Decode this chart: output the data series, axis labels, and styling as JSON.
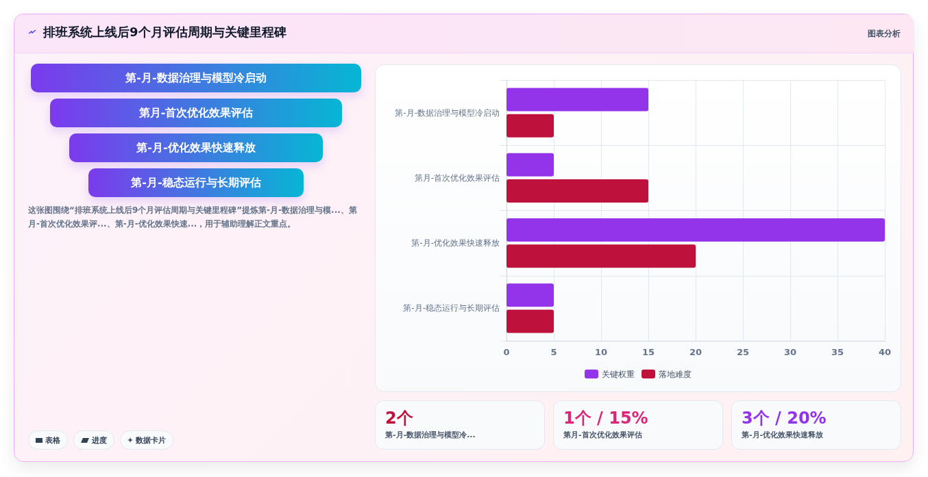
{
  "chart_data": [
    {
      "type": "other",
      "title": "排班系统上线后9个月评估周期与关键里程碑",
      "annotations": [
        "图表分析"
      ]
    },
    {
      "type": "other",
      "categories": [
        "第-月-数据治理与模型冷启动",
        "第月-首次优化效果评估",
        "第-月-优化效果快速释放",
        "第-月-稳态运行与长期评估"
      ],
      "annotations": [
        "这张图围绕“排班系统上线后9个月评估周期与关键里程碑”提炼第-月-数据治理与模...、第月-首次优化效果评...、第-月-优化效果快速...，用于辅助理解正文重点。"
      ]
    },
    {
      "type": "bar",
      "orientation": "horizontal",
      "categories": [
        "第-月-数据治理与模型冷启动",
        "第月-首次优化效果评估",
        "第-月-优化效果快速释放",
        "第-月-稳态运行与长期评估"
      ],
      "series": [
        {
          "name": "关键权重",
          "color": "#9333ea",
          "values": [
            15,
            5,
            40,
            5
          ]
        },
        {
          "name": "落地难度",
          "color": "#be123c",
          "values": [
            5,
            15,
            20,
            5
          ]
        }
      ],
      "xlim": [
        0,
        40
      ],
      "xticks": [
        0,
        5,
        10,
        15,
        20,
        25,
        30,
        35,
        40
      ],
      "grid": true,
      "legend": "bottom"
    },
    {
      "type": "other",
      "annotations": [
        "表格",
        "进度",
        "数据卡片"
      ]
    },
    {
      "type": "other",
      "categories": [
        "第-月-数据治理与模型冷...",
        "第月-首次优化效果评估",
        "第-月-优化效果快速释放"
      ],
      "value_labels": [
        "2个",
        "1个 / 15%",
        "3个 / 20%"
      ]
    }
  ]
}
